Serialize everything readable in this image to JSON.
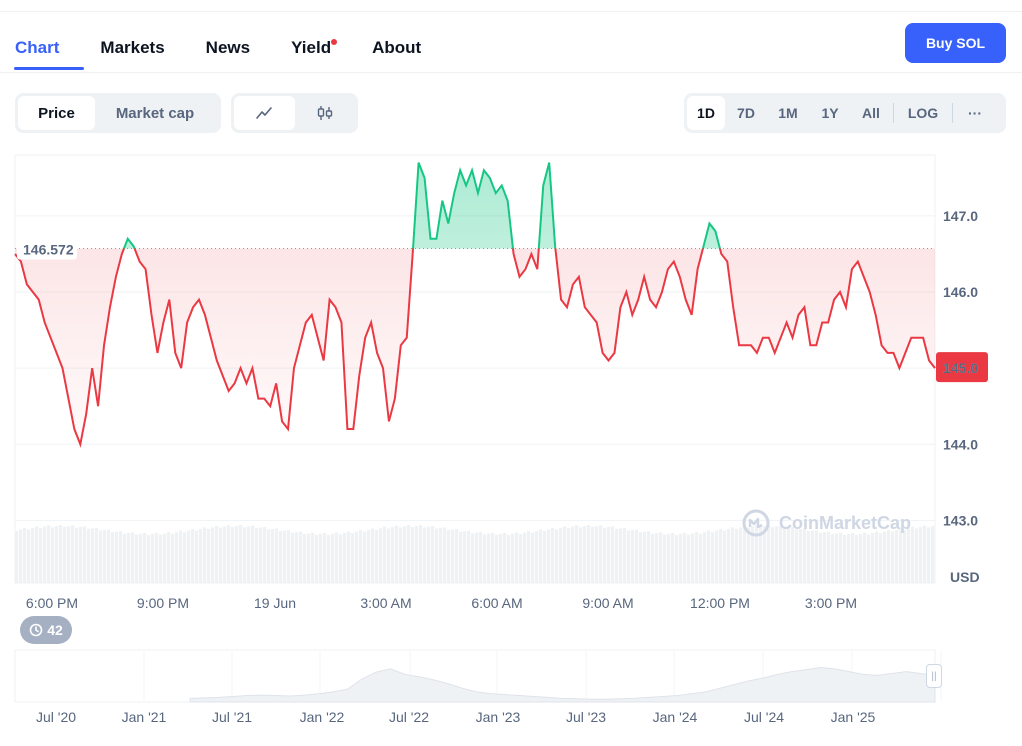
{
  "tabs": [
    {
      "label": "Chart"
    },
    {
      "label": "Markets"
    },
    {
      "label": "News"
    },
    {
      "label": "Yield"
    },
    {
      "label": "About"
    }
  ],
  "buy_button": "Buy SOL",
  "price_toggle": {
    "price": "Price",
    "market_cap": "Market cap"
  },
  "chart_type_icons": [
    "line-chart-icon",
    "candlestick-icon"
  ],
  "ranges": [
    "1D",
    "7D",
    "1M",
    "1Y",
    "All"
  ],
  "log_label": "LOG",
  "more_label": "···",
  "history_badge": "42",
  "watermark": "CoinMarketCap",
  "colors": {
    "accent": "#3861fb",
    "up": "#16c784",
    "down": "#ea3943"
  },
  "chart_data": [
    {
      "type": "area",
      "unit": "USD",
      "reference_value": 146.572,
      "current_value": 145.0,
      "ylim": [
        142.9,
        147.8
      ],
      "y_ticks": [
        143.0,
        144.0,
        145.0,
        146.0,
        147.0
      ],
      "y_tick_labels": [
        "143.0",
        "144.0",
        "145.0",
        "146.0",
        "147.0"
      ],
      "x_tick_labels": [
        "6:00 PM",
        "9:00 PM",
        "19 Jun",
        "3:00 AM",
        "6:00 AM",
        "9:00 AM",
        "12:00 PM",
        "3:00 PM"
      ],
      "reference_label": "146.572",
      "current_label": "145.0",
      "series": [
        {
          "values": [
            146.5,
            146.4,
            146.1,
            146.0,
            145.9,
            145.6,
            145.4,
            145.2,
            145.0,
            144.6,
            144.2,
            144.0,
            144.4,
            145.0,
            144.5,
            145.3,
            145.8,
            146.2,
            146.5,
            146.7,
            146.6,
            146.4,
            146.3,
            145.7,
            145.2,
            145.6,
            145.9,
            145.2,
            145.0,
            145.6,
            145.8,
            145.9,
            145.7,
            145.4,
            145.1,
            144.9,
            144.7,
            144.8,
            145.0,
            144.8,
            145.0,
            144.6,
            144.6,
            144.5,
            144.8,
            144.3,
            144.2,
            145.0,
            145.3,
            145.6,
            145.7,
            145.4,
            145.1,
            145.9,
            145.8,
            145.6,
            144.2,
            144.2,
            144.9,
            145.4,
            145.6,
            145.2,
            145.0,
            144.3,
            144.6,
            145.3,
            145.4,
            146.5,
            147.7,
            147.5,
            146.7,
            146.7,
            147.2,
            146.9,
            147.3,
            147.6,
            147.4,
            147.6,
            147.3,
            147.6,
            147.5,
            147.3,
            147.4,
            147.2,
            146.5,
            146.2,
            146.3,
            146.5,
            146.3,
            147.4,
            147.7,
            146.6,
            145.9,
            145.8,
            146.1,
            146.2,
            145.8,
            145.7,
            145.6,
            145.2,
            145.1,
            145.2,
            145.8,
            146.0,
            145.7,
            145.9,
            146.2,
            145.9,
            145.8,
            146.0,
            146.3,
            146.4,
            146.2,
            145.9,
            145.7,
            146.3,
            146.6,
            146.9,
            146.8,
            146.5,
            146.4,
            145.8,
            145.3,
            145.3,
            145.3,
            145.2,
            145.4,
            145.4,
            145.2,
            145.4,
            145.6,
            145.4,
            145.7,
            145.8,
            145.3,
            145.3,
            145.6,
            145.6,
            145.9,
            146.0,
            145.8,
            146.3,
            146.4,
            146.2,
            146.0,
            145.7,
            145.3,
            145.2,
            145.2,
            145.0,
            145.2,
            145.4,
            145.4,
            145.4,
            145.1,
            145.0
          ]
        }
      ],
      "navigator": {
        "type": "area",
        "x_tick_labels": [
          "Jul '20",
          "Jan '21",
          "Jul '21",
          "Jan '22",
          "Jul '22",
          "Jan '23",
          "Jul '23",
          "Jan '24",
          "Jul '24",
          "Jan '25"
        ],
        "values": [
          0.08,
          0.09,
          0.1,
          0.12,
          0.14,
          0.15,
          0.14,
          0.13,
          0.15,
          0.18,
          0.22,
          0.28,
          0.5,
          0.65,
          0.72,
          0.6,
          0.55,
          0.48,
          0.4,
          0.3,
          0.22,
          0.18,
          0.16,
          0.14,
          0.12,
          0.1,
          0.08,
          0.07,
          0.06,
          0.06,
          0.07,
          0.08,
          0.1,
          0.12,
          0.14,
          0.18,
          0.22,
          0.3,
          0.38,
          0.46,
          0.52,
          0.6,
          0.66,
          0.7,
          0.75,
          0.72,
          0.66,
          0.6,
          0.58,
          0.62,
          0.66,
          0.62,
          0.58
        ]
      }
    }
  ]
}
